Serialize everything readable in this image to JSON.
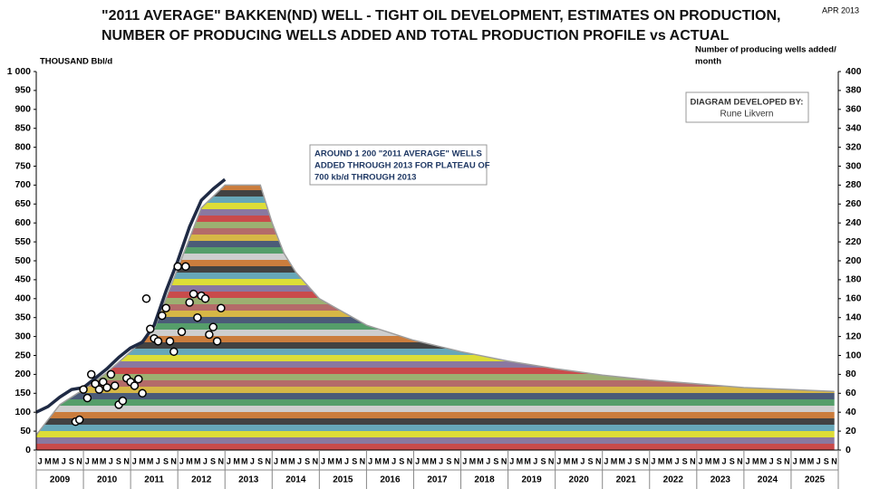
{
  "chart_data": {
    "type": "line",
    "title": "\"2011 AVERAGE\"  BAKKEN(ND) WELL - TIGHT OIL DEVELOPMENT, ESTIMATES ON PRODUCTION,",
    "subtitle": "NUMBER OF PRODUCING WELLS ADDED AND TOTAL PRODUCTION PROFILE vs ACTUAL",
    "date_note": "APR 2013",
    "y_label": "THOUSAND Bbl/d",
    "y2_label": [
      "Number of  producing wells added/",
      "month"
    ],
    "annotations": [
      "AROUND 1 200 \"2011 AVERAGE\" WELLS",
      "ADDED THROUGH 2013 FOR  PLATEAU OF",
      "700 kb/d  THROUGH 2013"
    ],
    "credit": [
      "DIAGRAM DEVELOPED BY:",
      "Rune Likvern"
    ],
    "xlim": [
      "2009-01",
      "2026-01"
    ],
    "years": [
      "2009",
      "2010",
      "2011",
      "2012",
      "2013",
      "2014",
      "2015",
      "2016",
      "2017",
      "2018",
      "2019",
      "2020",
      "2021",
      "2022",
      "2023",
      "2024",
      "2025"
    ],
    "month_labels": [
      "J",
      "M",
      "M",
      "J",
      "S",
      "N"
    ],
    "ylim": [
      0,
      1000
    ],
    "yticks": [
      0,
      50,
      100,
      150,
      200,
      250,
      300,
      350,
      400,
      450,
      500,
      550,
      600,
      650,
      700,
      750,
      800,
      850,
      900,
      950,
      {
        "value": 1000,
        "label": "1 000"
      }
    ],
    "y2lim": [
      0,
      400
    ],
    "y2ticks": [
      0,
      20,
      40,
      60,
      80,
      100,
      120,
      140,
      160,
      180,
      200,
      220,
      240,
      260,
      280,
      300,
      320,
      340,
      360,
      380,
      400
    ],
    "series": [
      {
        "name": "Estimate",
        "color": "#9e9e9e",
        "x": [
          "2009-01",
          "2009-07",
          "2010-01",
          "2010-07",
          "2011-01",
          "2011-07",
          "2012-01",
          "2012-07",
          "2013-01",
          "2013-10",
          "2014-01",
          "2014-04",
          "2014-07",
          "2015-01",
          "2016-01",
          "2017-01",
          "2018-01",
          "2019-01",
          "2020-01",
          "2021-01",
          "2022-01",
          "2023-01",
          "2024-01",
          "2025-12"
        ],
        "values": [
          40,
          120,
          160,
          205,
          260,
          320,
          480,
          640,
          700,
          700,
          600,
          520,
          470,
          400,
          330,
          290,
          260,
          235,
          215,
          198,
          185,
          175,
          165,
          155
        ]
      },
      {
        "name": "Actual",
        "color": "#1f2a44",
        "x": [
          "2009-01",
          "2009-04",
          "2009-07",
          "2009-10",
          "2010-01",
          "2010-04",
          "2010-07",
          "2010-10",
          "2011-01",
          "2011-04",
          "2011-07",
          "2011-10",
          "2012-01",
          "2012-04",
          "2012-07",
          "2012-10",
          "2013-01"
        ],
        "values": [
          100,
          115,
          140,
          160,
          165,
          190,
          215,
          245,
          270,
          285,
          330,
          420,
          500,
          590,
          660,
          690,
          715
        ]
      },
      {
        "name": "Wells added",
        "color": "#ffffff",
        "axis": "y2",
        "x": [
          "2009-11",
          "2009-12",
          "2010-01",
          "2010-02",
          "2010-03",
          "2010-04",
          "2010-05",
          "2010-06",
          "2010-07",
          "2010-08",
          "2010-09",
          "2010-10",
          "2010-11",
          "2010-12",
          "2011-01",
          "2011-02",
          "2011-03",
          "2011-04",
          "2011-05",
          "2011-06",
          "2011-07",
          "2011-08",
          "2011-09",
          "2011-10",
          "2011-11",
          "2011-12",
          "2012-01",
          "2012-02",
          "2012-03",
          "2012-04",
          "2012-05",
          "2012-06",
          "2012-07",
          "2012-08",
          "2012-09",
          "2012-10",
          "2012-11",
          "2012-12"
        ],
        "values": [
          30,
          32,
          64,
          55,
          80,
          70,
          64,
          72,
          66,
          80,
          68,
          48,
          52,
          76,
          72,
          68,
          75,
          60,
          160,
          128,
          118,
          115,
          142,
          150,
          115,
          104,
          194,
          125,
          194,
          156,
          165,
          140,
          163,
          160,
          122,
          130,
          115,
          150
        ]
      }
    ]
  }
}
